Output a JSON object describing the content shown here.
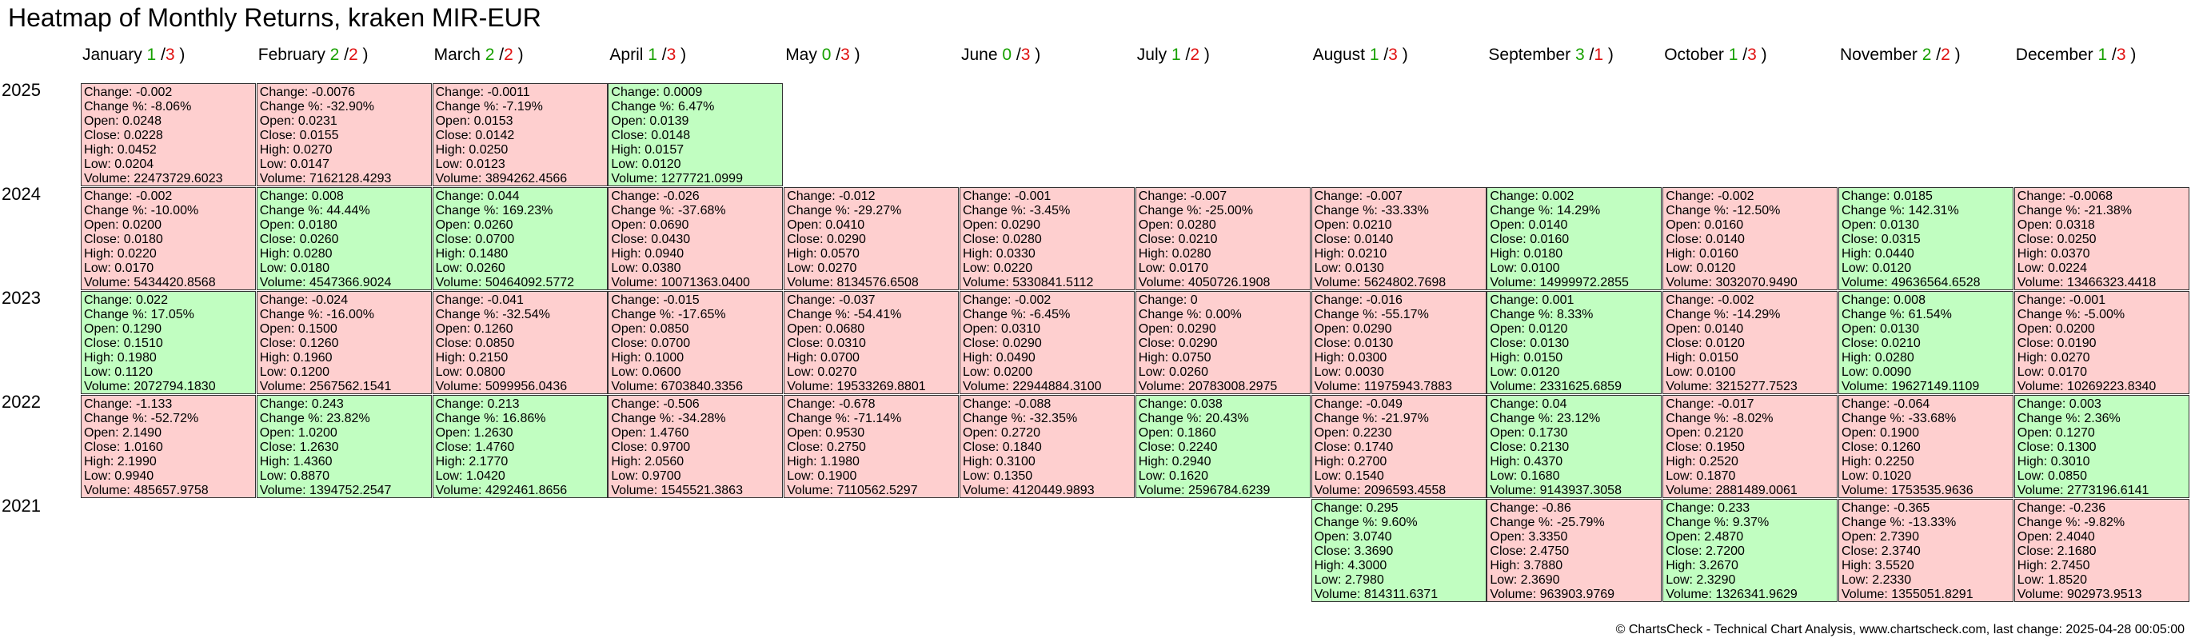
{
  "chart_data": {
    "type": "heatmap",
    "title": "Heatmap of Monthly Returns, kraken MIR-EUR",
    "footer": "© ChartsCheck - Technical Chart Analysis, www.chartscheck.com, last change: 2025-04-28 00:05:00",
    "colors": {
      "up": "#c1fec1",
      "down": "#fecfcf",
      "up_count": "#17a000",
      "down_count": "#e01010"
    },
    "field_labels": {
      "change": "Change: ",
      "change_pct": "Change %: ",
      "open": "Open: ",
      "close": "Close: ",
      "high": "High: ",
      "low": "Low: ",
      "volume": "Volume: "
    },
    "months": [
      {
        "name": "January",
        "up": "1",
        "down": "3"
      },
      {
        "name": "February",
        "up": "2",
        "down": "2"
      },
      {
        "name": "March",
        "up": "2",
        "down": "2"
      },
      {
        "name": "April",
        "up": "1",
        "down": "3"
      },
      {
        "name": "May",
        "up": "0",
        "down": "3"
      },
      {
        "name": "June",
        "up": "0",
        "down": "3"
      },
      {
        "name": "July",
        "up": "1",
        "down": "2"
      },
      {
        "name": "August",
        "up": "1",
        "down": "3"
      },
      {
        "name": "September",
        "up": "3",
        "down": "1"
      },
      {
        "name": "October",
        "up": "1",
        "down": "3"
      },
      {
        "name": "November",
        "up": "2",
        "down": "2"
      },
      {
        "name": "December",
        "up": "1",
        "down": "3"
      }
    ],
    "years": [
      {
        "year": "2025",
        "cells": [
          {
            "month": 0,
            "change": "-0.002",
            "change_pct": "-8.06%",
            "open": "0.0248",
            "close": "0.0228",
            "high": "0.0452",
            "low": "0.0204",
            "volume": "22473729.6023"
          },
          {
            "month": 1,
            "change": "-0.0076",
            "change_pct": "-32.90%",
            "open": "0.0231",
            "close": "0.0155",
            "high": "0.0270",
            "low": "0.0147",
            "volume": "7162128.4293"
          },
          {
            "month": 2,
            "change": "-0.0011",
            "change_pct": "-7.19%",
            "open": "0.0153",
            "close": "0.0142",
            "high": "0.0250",
            "low": "0.0123",
            "volume": "3894262.4566"
          },
          {
            "month": 3,
            "change": "0.0009",
            "change_pct": "6.47%",
            "open": "0.0139",
            "close": "0.0148",
            "high": "0.0157",
            "low": "0.0120",
            "volume": "1277721.0999"
          }
        ]
      },
      {
        "year": "2024",
        "cells": [
          {
            "month": 0,
            "change": "-0.002",
            "change_pct": "-10.00%",
            "open": "0.0200",
            "close": "0.0180",
            "high": "0.0220",
            "low": "0.0170",
            "volume": "5434420.8568"
          },
          {
            "month": 1,
            "change": "0.008",
            "change_pct": "44.44%",
            "open": "0.0180",
            "close": "0.0260",
            "high": "0.0280",
            "low": "0.0180",
            "volume": "4547366.9024"
          },
          {
            "month": 2,
            "change": "0.044",
            "change_pct": "169.23%",
            "open": "0.0260",
            "close": "0.0700",
            "high": "0.1480",
            "low": "0.0260",
            "volume": "50464092.5772"
          },
          {
            "month": 3,
            "change": "-0.026",
            "change_pct": "-37.68%",
            "open": "0.0690",
            "close": "0.0430",
            "high": "0.0940",
            "low": "0.0380",
            "volume": "10071363.0400"
          },
          {
            "month": 4,
            "change": "-0.012",
            "change_pct": "-29.27%",
            "open": "0.0410",
            "close": "0.0290",
            "high": "0.0570",
            "low": "0.0270",
            "volume": "8134576.6508"
          },
          {
            "month": 5,
            "change": "-0.001",
            "change_pct": "-3.45%",
            "open": "0.0290",
            "close": "0.0280",
            "high": "0.0330",
            "low": "0.0220",
            "volume": "5330841.5112"
          },
          {
            "month": 6,
            "change": "-0.007",
            "change_pct": "-25.00%",
            "open": "0.0280",
            "close": "0.0210",
            "high": "0.0280",
            "low": "0.0170",
            "volume": "4050726.1908"
          },
          {
            "month": 7,
            "change": "-0.007",
            "change_pct": "-33.33%",
            "open": "0.0210",
            "close": "0.0140",
            "high": "0.0210",
            "low": "0.0130",
            "volume": "5624802.7698"
          },
          {
            "month": 8,
            "change": "0.002",
            "change_pct": "14.29%",
            "open": "0.0140",
            "close": "0.0160",
            "high": "0.0180",
            "low": "0.0100",
            "volume": "14999972.2855"
          },
          {
            "month": 9,
            "change": "-0.002",
            "change_pct": "-12.50%",
            "open": "0.0160",
            "close": "0.0140",
            "high": "0.0160",
            "low": "0.0120",
            "volume": "3032070.9490"
          },
          {
            "month": 10,
            "change": "0.0185",
            "change_pct": "142.31%",
            "open": "0.0130",
            "close": "0.0315",
            "high": "0.0440",
            "low": "0.0120",
            "volume": "49636564.6528"
          },
          {
            "month": 11,
            "change": "-0.0068",
            "change_pct": "-21.38%",
            "open": "0.0318",
            "close": "0.0250",
            "high": "0.0370",
            "low": "0.0224",
            "volume": "13466323.4418"
          }
        ]
      },
      {
        "year": "2023",
        "cells": [
          {
            "month": 0,
            "change": "0.022",
            "change_pct": "17.05%",
            "open": "0.1290",
            "close": "0.1510",
            "high": "0.1980",
            "low": "0.1120",
            "volume": "2072794.1830"
          },
          {
            "month": 1,
            "change": "-0.024",
            "change_pct": "-16.00%",
            "open": "0.1500",
            "close": "0.1260",
            "high": "0.1960",
            "low": "0.1200",
            "volume": "2567562.1541"
          },
          {
            "month": 2,
            "change": "-0.041",
            "change_pct": "-32.54%",
            "open": "0.1260",
            "close": "0.0850",
            "high": "0.2150",
            "low": "0.0800",
            "volume": "5099956.0436"
          },
          {
            "month": 3,
            "change": "-0.015",
            "change_pct": "-17.65%",
            "open": "0.0850",
            "close": "0.0700",
            "high": "0.1000",
            "low": "0.0600",
            "volume": "6703840.3356"
          },
          {
            "month": 4,
            "change": "-0.037",
            "change_pct": "-54.41%",
            "open": "0.0680",
            "close": "0.0310",
            "high": "0.0700",
            "low": "0.0270",
            "volume": "19533269.8801"
          },
          {
            "month": 5,
            "change": "-0.002",
            "change_pct": "-6.45%",
            "open": "0.0310",
            "close": "0.0290",
            "high": "0.0490",
            "low": "0.0200",
            "volume": "22944884.3100"
          },
          {
            "month": 6,
            "change": "0",
            "change_pct": "0.00%",
            "open": "0.0290",
            "close": "0.0290",
            "high": "0.0750",
            "low": "0.0260",
            "volume": "20783008.2975"
          },
          {
            "month": 7,
            "change": "-0.016",
            "change_pct": "-55.17%",
            "open": "0.0290",
            "close": "0.0130",
            "high": "0.0300",
            "low": "0.0030",
            "volume": "11975943.7883"
          },
          {
            "month": 8,
            "change": "0.001",
            "change_pct": "8.33%",
            "open": "0.0120",
            "close": "0.0130",
            "high": "0.0150",
            "low": "0.0120",
            "volume": "2331625.6859"
          },
          {
            "month": 9,
            "change": "-0.002",
            "change_pct": "-14.29%",
            "open": "0.0140",
            "close": "0.0120",
            "high": "0.0150",
            "low": "0.0100",
            "volume": "3215277.7523"
          },
          {
            "month": 10,
            "change": "0.008",
            "change_pct": "61.54%",
            "open": "0.0130",
            "close": "0.0210",
            "high": "0.0280",
            "low": "0.0090",
            "volume": "19627149.1109"
          },
          {
            "month": 11,
            "change": "-0.001",
            "change_pct": "-5.00%",
            "open": "0.0200",
            "close": "0.0190",
            "high": "0.0270",
            "low": "0.0170",
            "volume": "10269223.8340"
          }
        ]
      },
      {
        "year": "2022",
        "cells": [
          {
            "month": 0,
            "change": "-1.133",
            "change_pct": "-52.72%",
            "open": "2.1490",
            "close": "1.0160",
            "high": "2.1990",
            "low": "0.9940",
            "volume": "485657.9758"
          },
          {
            "month": 1,
            "change": "0.243",
            "change_pct": "23.82%",
            "open": "1.0200",
            "close": "1.2630",
            "high": "1.4360",
            "low": "0.8870",
            "volume": "1394752.2547"
          },
          {
            "month": 2,
            "change": "0.213",
            "change_pct": "16.86%",
            "open": "1.2630",
            "close": "1.4760",
            "high": "2.1770",
            "low": "1.0420",
            "volume": "4292461.8656"
          },
          {
            "month": 3,
            "change": "-0.506",
            "change_pct": "-34.28%",
            "open": "1.4760",
            "close": "0.9700",
            "high": "2.0560",
            "low": "0.9700",
            "volume": "1545521.3863"
          },
          {
            "month": 4,
            "change": "-0.678",
            "change_pct": "-71.14%",
            "open": "0.9530",
            "close": "0.2750",
            "high": "1.1980",
            "low": "0.1900",
            "volume": "7110562.5297"
          },
          {
            "month": 5,
            "change": "-0.088",
            "change_pct": "-32.35%",
            "open": "0.2720",
            "close": "0.1840",
            "high": "0.3100",
            "low": "0.1350",
            "volume": "4120449.9893"
          },
          {
            "month": 6,
            "change": "0.038",
            "change_pct": "20.43%",
            "open": "0.1860",
            "close": "0.2240",
            "high": "0.2940",
            "low": "0.1620",
            "volume": "2596784.6239"
          },
          {
            "month": 7,
            "change": "-0.049",
            "change_pct": "-21.97%",
            "open": "0.2230",
            "close": "0.1740",
            "high": "0.2700",
            "low": "0.1540",
            "volume": "2096593.4558"
          },
          {
            "month": 8,
            "change": "0.04",
            "change_pct": "23.12%",
            "open": "0.1730",
            "close": "0.2130",
            "high": "0.4370",
            "low": "0.1680",
            "volume": "9143937.3058"
          },
          {
            "month": 9,
            "change": "-0.017",
            "change_pct": "-8.02%",
            "open": "0.2120",
            "close": "0.1950",
            "high": "0.2520",
            "low": "0.1870",
            "volume": "2881489.0061"
          },
          {
            "month": 10,
            "change": "-0.064",
            "change_pct": "-33.68%",
            "open": "0.1900",
            "close": "0.1260",
            "high": "0.2250",
            "low": "0.1020",
            "volume": "1753535.9636"
          },
          {
            "month": 11,
            "change": "0.003",
            "change_pct": "2.36%",
            "open": "0.1270",
            "close": "0.1300",
            "high": "0.3010",
            "low": "0.0850",
            "volume": "2773196.6141"
          }
        ]
      },
      {
        "year": "2021",
        "cells": [
          {
            "month": 7,
            "change": "0.295",
            "change_pct": "9.60%",
            "open": "3.0740",
            "close": "3.3690",
            "high": "4.3000",
            "low": "2.7980",
            "volume": "814311.6371"
          },
          {
            "month": 8,
            "change": "-0.86",
            "change_pct": "-25.79%",
            "open": "3.3350",
            "close": "2.4750",
            "high": "3.7880",
            "low": "2.3690",
            "volume": "963903.9769"
          },
          {
            "month": 9,
            "change": "0.233",
            "change_pct": "9.37%",
            "open": "2.4870",
            "close": "2.7200",
            "high": "3.2670",
            "low": "2.3290",
            "volume": "1326341.9629"
          },
          {
            "month": 10,
            "change": "-0.365",
            "change_pct": "-13.33%",
            "open": "2.7390",
            "close": "2.3740",
            "high": "3.5520",
            "low": "2.2330",
            "volume": "1355051.8291"
          },
          {
            "month": 11,
            "change": "-0.236",
            "change_pct": "-9.82%",
            "open": "2.4040",
            "close": "2.1680",
            "high": "2.7450",
            "low": "1.8520",
            "volume": "902973.9513"
          }
        ]
      }
    ]
  }
}
